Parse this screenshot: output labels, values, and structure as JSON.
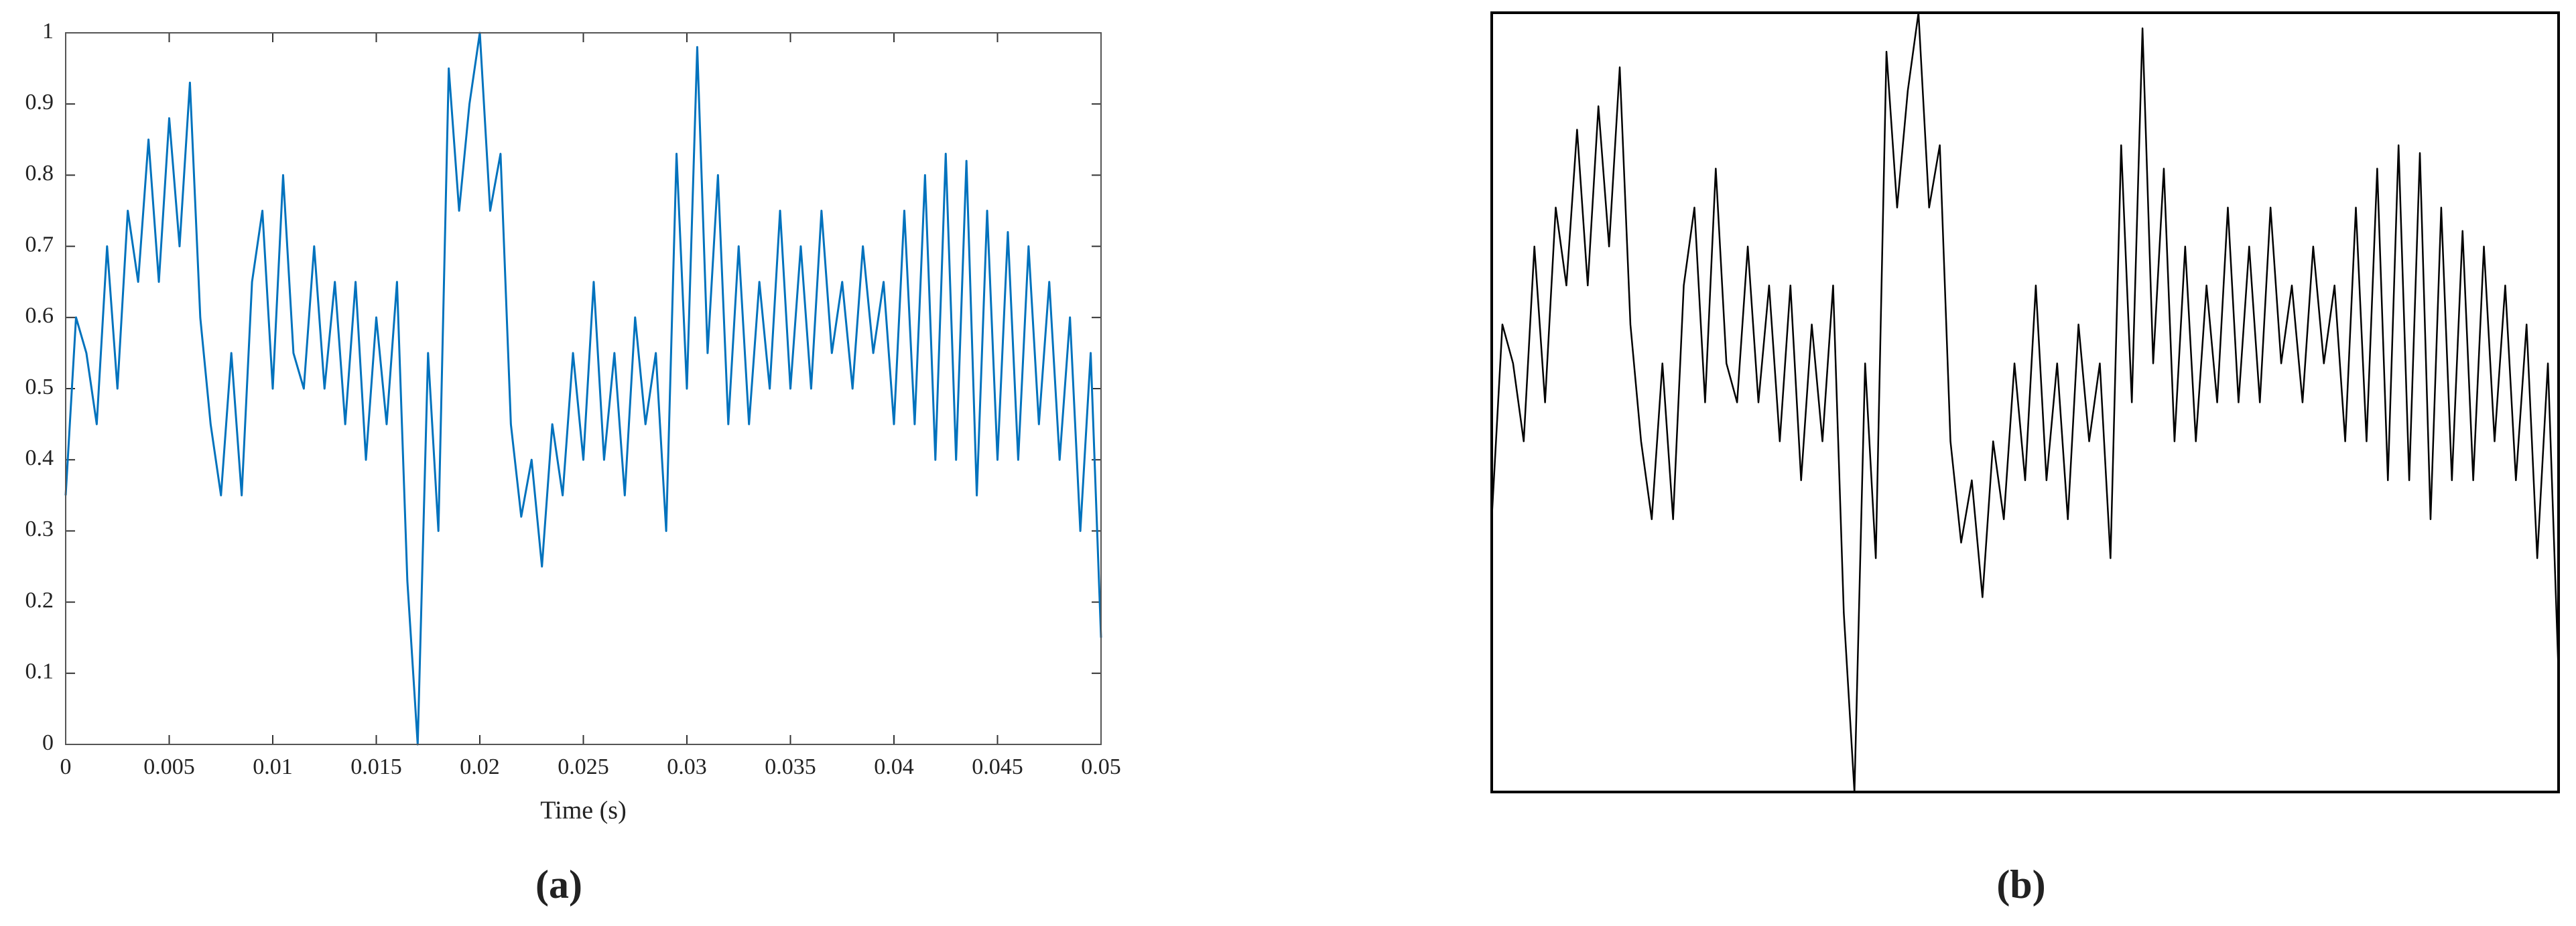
{
  "chart_data": [
    {
      "type": "line",
      "label": "(a)",
      "xlabel": "Time (s)",
      "color": "#0072bd",
      "x": [
        0,
        0.0005,
        0.001,
        0.0015,
        0.002,
        0.0025,
        0.003,
        0.0035,
        0.004,
        0.0045,
        0.005,
        0.0055,
        0.006,
        0.0065,
        0.007,
        0.0075,
        0.008,
        0.0085,
        0.009,
        0.0095,
        0.01,
        0.0105,
        0.011,
        0.0115,
        0.012,
        0.0125,
        0.013,
        0.0135,
        0.014,
        0.0145,
        0.015,
        0.0155,
        0.016,
        0.0165,
        0.017,
        0.0175,
        0.018,
        0.0185,
        0.019,
        0.0195,
        0.02,
        0.0205,
        0.021,
        0.0215,
        0.022,
        0.0225,
        0.023,
        0.0235,
        0.024,
        0.0245,
        0.025,
        0.0255,
        0.026,
        0.0265,
        0.027,
        0.0275,
        0.028,
        0.0285,
        0.029,
        0.0295,
        0.03,
        0.0305,
        0.031,
        0.0315,
        0.032,
        0.0325,
        0.033,
        0.0335,
        0.034,
        0.0345,
        0.035,
        0.0355,
        0.036,
        0.0365,
        0.037,
        0.0375,
        0.038,
        0.0385,
        0.039,
        0.0395,
        0.04,
        0.0405,
        0.041,
        0.0415,
        0.042,
        0.0425,
        0.043,
        0.0435,
        0.044,
        0.0445,
        0.045,
        0.0455,
        0.046,
        0.0465,
        0.047,
        0.0475,
        0.048,
        0.0485,
        0.049,
        0.0495,
        0.05
      ],
      "values": [
        0.35,
        0.6,
        0.55,
        0.45,
        0.7,
        0.5,
        0.75,
        0.65,
        0.85,
        0.65,
        0.88,
        0.7,
        0.93,
        0.6,
        0.45,
        0.35,
        0.55,
        0.35,
        0.65,
        0.75,
        0.5,
        0.8,
        0.55,
        0.5,
        0.7,
        0.5,
        0.65,
        0.45,
        0.65,
        0.4,
        0.6,
        0.45,
        0.65,
        0.23,
        0.0,
        0.55,
        0.3,
        0.95,
        0.75,
        0.9,
        1.0,
        0.75,
        0.83,
        0.45,
        0.32,
        0.4,
        0.25,
        0.45,
        0.35,
        0.55,
        0.4,
        0.65,
        0.4,
        0.55,
        0.35,
        0.6,
        0.45,
        0.55,
        0.3,
        0.83,
        0.5,
        0.98,
        0.55,
        0.8,
        0.45,
        0.7,
        0.45,
        0.65,
        0.5,
        0.75,
        0.5,
        0.7,
        0.5,
        0.75,
        0.55,
        0.65,
        0.5,
        0.7,
        0.55,
        0.65,
        0.45,
        0.75,
        0.45,
        0.8,
        0.4,
        0.83,
        0.4,
        0.82,
        0.35,
        0.75,
        0.4,
        0.72,
        0.4,
        0.7,
        0.45,
        0.65,
        0.4,
        0.6,
        0.3,
        0.55,
        0.15
      ],
      "xlim": [
        0,
        0.05
      ],
      "ylim": [
        0,
        1
      ],
      "xticks": [
        0,
        0.005,
        0.01,
        0.015,
        0.02,
        0.025,
        0.03,
        0.035,
        0.04,
        0.045,
        0.05
      ],
      "yticks": [
        0,
        0.1,
        0.2,
        0.3,
        0.4,
        0.5,
        0.6,
        0.7,
        0.8,
        0.9,
        1
      ]
    },
    {
      "type": "line",
      "label": "(b)",
      "color": "#000000",
      "x": [
        0,
        0.0005,
        0.001,
        0.0015,
        0.002,
        0.0025,
        0.003,
        0.0035,
        0.004,
        0.0045,
        0.005,
        0.0055,
        0.006,
        0.0065,
        0.007,
        0.0075,
        0.008,
        0.0085,
        0.009,
        0.0095,
        0.01,
        0.0105,
        0.011,
        0.0115,
        0.012,
        0.0125,
        0.013,
        0.0135,
        0.014,
        0.0145,
        0.015,
        0.0155,
        0.016,
        0.0165,
        0.017,
        0.0175,
        0.018,
        0.0185,
        0.019,
        0.0195,
        0.02,
        0.0205,
        0.021,
        0.0215,
        0.022,
        0.0225,
        0.023,
        0.0235,
        0.024,
        0.0245,
        0.025,
        0.0255,
        0.026,
        0.0265,
        0.027,
        0.0275,
        0.028,
        0.0285,
        0.029,
        0.0295,
        0.03,
        0.0305,
        0.031,
        0.0315,
        0.032,
        0.0325,
        0.033,
        0.0335,
        0.034,
        0.0345,
        0.035,
        0.0355,
        0.036,
        0.0365,
        0.037,
        0.0375,
        0.038,
        0.0385,
        0.039,
        0.0395,
        0.04,
        0.0405,
        0.041,
        0.0415,
        0.042,
        0.0425,
        0.043,
        0.0435,
        0.044,
        0.0445,
        0.045,
        0.0455,
        0.046,
        0.0465,
        0.047,
        0.0475,
        0.048,
        0.0485,
        0.049,
        0.0495,
        0.05
      ],
      "values": [
        0.35,
        0.6,
        0.55,
        0.45,
        0.7,
        0.5,
        0.75,
        0.65,
        0.85,
        0.65,
        0.88,
        0.7,
        0.93,
        0.6,
        0.45,
        0.35,
        0.55,
        0.35,
        0.65,
        0.75,
        0.5,
        0.8,
        0.55,
        0.5,
        0.7,
        0.5,
        0.65,
        0.45,
        0.65,
        0.4,
        0.6,
        0.45,
        0.65,
        0.23,
        0.0,
        0.55,
        0.3,
        0.95,
        0.75,
        0.9,
        1.0,
        0.75,
        0.83,
        0.45,
        0.32,
        0.4,
        0.25,
        0.45,
        0.35,
        0.55,
        0.4,
        0.65,
        0.4,
        0.55,
        0.35,
        0.6,
        0.45,
        0.55,
        0.3,
        0.83,
        0.5,
        0.98,
        0.55,
        0.8,
        0.45,
        0.7,
        0.45,
        0.65,
        0.5,
        0.75,
        0.5,
        0.7,
        0.5,
        0.75,
        0.55,
        0.65,
        0.5,
        0.7,
        0.55,
        0.65,
        0.45,
        0.75,
        0.45,
        0.8,
        0.4,
        0.83,
        0.4,
        0.82,
        0.35,
        0.75,
        0.4,
        0.72,
        0.4,
        0.7,
        0.45,
        0.65,
        0.4,
        0.6,
        0.3,
        0.55,
        0.15
      ]
    }
  ]
}
